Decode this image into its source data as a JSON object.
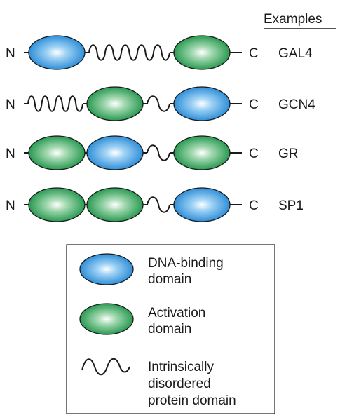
{
  "header": {
    "examples_label": "Examples"
  },
  "terminals": {
    "n": "N",
    "c": "C"
  },
  "rows": [
    {
      "example": "GAL4",
      "domains": [
        "dna-binding",
        "linker",
        "activation"
      ]
    },
    {
      "example": "GCN4",
      "domains": [
        "linker",
        "activation",
        "dna-binding"
      ]
    },
    {
      "example": "GR",
      "domains": [
        "activation",
        "dna-binding",
        "activation"
      ]
    },
    {
      "example": "SP1",
      "domains": [
        "activation",
        "activation",
        "dna-binding"
      ]
    }
  ],
  "legend": {
    "dna_binding": {
      "line1": "DNA-binding",
      "line2": "domain"
    },
    "activation": {
      "line1": "Activation",
      "line2": "domain"
    },
    "disordered": {
      "line1": "Intrinsically",
      "line2": "disordered",
      "line3": "protein domain"
    }
  },
  "colors": {
    "dna_binding": "#2f8fd8",
    "activation": "#2a9a52",
    "outline": "#1a1a1a"
  }
}
